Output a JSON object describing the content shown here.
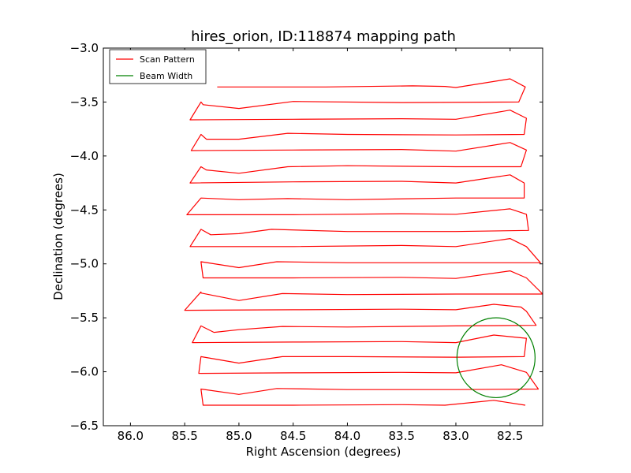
{
  "chart_data": {
    "type": "line",
    "title": "hires_orion, ID:118874 mapping path",
    "xlabel": "Right Ascension (degrees)",
    "ylabel": "Declination (degrees)",
    "xlim": [
      86.25,
      82.2
    ],
    "ylim": [
      -6.5,
      -3.0
    ],
    "x_ticks": [
      86.0,
      85.5,
      85.0,
      84.5,
      84.0,
      83.5,
      83.0,
      82.5
    ],
    "x_tick_labels": [
      "86.0",
      "85.5",
      "85.0",
      "84.5",
      "84.0",
      "83.5",
      "83.0",
      "82.5"
    ],
    "y_ticks": [
      -3.0,
      -3.5,
      -4.0,
      -4.5,
      -5.0,
      -5.5,
      -6.0,
      -6.5
    ],
    "y_tick_labels": [
      "−3.0",
      "−3.5",
      "−4.0",
      "−4.5",
      "−5.0",
      "−5.5",
      "−6.0",
      "−6.5"
    ],
    "grid": false,
    "legend_position": "top-left",
    "series": [
      {
        "name": "Scan Pattern",
        "color": "#ff0000",
        "points": [
          [
            85.2,
            -3.36
          ],
          [
            84.2,
            -3.36
          ],
          [
            83.4,
            -3.35
          ],
          [
            83.1,
            -3.355
          ],
          [
            83.0,
            -3.365
          ],
          [
            82.5,
            -3.285
          ],
          [
            82.36,
            -3.36
          ],
          [
            82.42,
            -3.5
          ],
          [
            83.5,
            -3.505
          ],
          [
            84.5,
            -3.495
          ],
          [
            85.0,
            -3.56
          ],
          [
            85.33,
            -3.525
          ],
          [
            85.35,
            -3.5
          ],
          [
            85.45,
            -3.665
          ],
          [
            84.5,
            -3.66
          ],
          [
            83.5,
            -3.655
          ],
          [
            83.0,
            -3.66
          ],
          [
            82.5,
            -3.575
          ],
          [
            82.35,
            -3.65
          ],
          [
            82.37,
            -3.8
          ],
          [
            83.0,
            -3.805
          ],
          [
            84.0,
            -3.8
          ],
          [
            84.55,
            -3.79
          ],
          [
            85.0,
            -3.845
          ],
          [
            85.3,
            -3.845
          ],
          [
            85.35,
            -3.8
          ],
          [
            85.44,
            -3.95
          ],
          [
            84.5,
            -3.945
          ],
          [
            83.5,
            -3.94
          ],
          [
            83.0,
            -3.955
          ],
          [
            82.5,
            -3.875
          ],
          [
            82.35,
            -3.945
          ],
          [
            82.4,
            -4.1
          ],
          [
            83.0,
            -4.1
          ],
          [
            84.0,
            -4.09
          ],
          [
            84.55,
            -4.1
          ],
          [
            85.0,
            -4.16
          ],
          [
            85.3,
            -4.13
          ],
          [
            85.35,
            -4.1
          ],
          [
            85.45,
            -4.25
          ],
          [
            84.5,
            -4.24
          ],
          [
            83.5,
            -4.235
          ],
          [
            83.0,
            -4.25
          ],
          [
            82.5,
            -4.175
          ],
          [
            82.37,
            -4.25
          ],
          [
            82.37,
            -4.39
          ],
          [
            83.0,
            -4.39
          ],
          [
            84.0,
            -4.405
          ],
          [
            84.55,
            -4.395
          ],
          [
            85.0,
            -4.405
          ],
          [
            85.35,
            -4.39
          ],
          [
            85.48,
            -4.545
          ],
          [
            84.5,
            -4.545
          ],
          [
            83.5,
            -4.535
          ],
          [
            83.0,
            -4.54
          ],
          [
            82.5,
            -4.49
          ],
          [
            82.35,
            -4.54
          ],
          [
            82.33,
            -4.69
          ],
          [
            83.0,
            -4.7
          ],
          [
            84.0,
            -4.7
          ],
          [
            84.7,
            -4.68
          ],
          [
            85.0,
            -4.72
          ],
          [
            85.26,
            -4.73
          ],
          [
            85.35,
            -4.68
          ],
          [
            85.45,
            -4.84
          ],
          [
            84.5,
            -4.84
          ],
          [
            83.5,
            -4.83
          ],
          [
            83.0,
            -4.84
          ],
          [
            82.5,
            -4.765
          ],
          [
            82.35,
            -4.84
          ],
          [
            82.22,
            -4.99
          ],
          [
            83.0,
            -4.99
          ],
          [
            84.0,
            -4.99
          ],
          [
            84.65,
            -4.98
          ],
          [
            85.0,
            -5.035
          ],
          [
            85.35,
            -4.98
          ],
          [
            85.33,
            -5.13
          ],
          [
            84.5,
            -5.13
          ],
          [
            83.5,
            -5.125
          ],
          [
            83.0,
            -5.135
          ],
          [
            82.5,
            -5.065
          ],
          [
            82.35,
            -5.13
          ],
          [
            82.2,
            -5.28
          ],
          [
            83.0,
            -5.28
          ],
          [
            84.0,
            -5.285
          ],
          [
            84.6,
            -5.275
          ],
          [
            85.0,
            -5.34
          ],
          [
            85.35,
            -5.27
          ],
          [
            85.35,
            -5.26
          ],
          [
            85.5,
            -5.43
          ],
          [
            84.5,
            -5.425
          ],
          [
            83.5,
            -5.42
          ],
          [
            83.0,
            -5.425
          ],
          [
            82.65,
            -5.375
          ],
          [
            82.4,
            -5.4
          ],
          [
            82.35,
            -5.44
          ],
          [
            82.26,
            -5.57
          ],
          [
            83.0,
            -5.575
          ],
          [
            84.0,
            -5.585
          ],
          [
            84.6,
            -5.58
          ],
          [
            85.0,
            -5.61
          ],
          [
            85.23,
            -5.635
          ],
          [
            85.35,
            -5.575
          ],
          [
            85.43,
            -5.73
          ],
          [
            84.5,
            -5.725
          ],
          [
            83.5,
            -5.72
          ],
          [
            83.0,
            -5.73
          ],
          [
            82.65,
            -5.66
          ],
          [
            82.35,
            -5.69
          ],
          [
            82.37,
            -5.86
          ],
          [
            83.0,
            -5.865
          ],
          [
            84.0,
            -5.86
          ],
          [
            84.6,
            -5.86
          ],
          [
            85.0,
            -5.92
          ],
          [
            85.35,
            -5.86
          ],
          [
            85.37,
            -6.015
          ],
          [
            84.5,
            -6.01
          ],
          [
            83.5,
            -6.005
          ],
          [
            83.0,
            -6.01
          ],
          [
            82.58,
            -5.935
          ],
          [
            82.35,
            -6.005
          ],
          [
            82.24,
            -6.16
          ],
          [
            83.0,
            -6.165
          ],
          [
            84.0,
            -6.165
          ],
          [
            84.65,
            -6.155
          ],
          [
            85.0,
            -6.21
          ],
          [
            85.35,
            -6.16
          ],
          [
            85.33,
            -6.31
          ],
          [
            84.5,
            -6.31
          ],
          [
            83.5,
            -6.305
          ],
          [
            83.1,
            -6.31
          ],
          [
            82.65,
            -6.265
          ],
          [
            82.36,
            -6.31
          ]
        ]
      },
      {
        "name": "Beam Width",
        "color": "#008000",
        "shape": "circle",
        "center": [
          82.63,
          -5.87
        ],
        "radius_x": 0.36,
        "radius_y": 0.37
      }
    ]
  }
}
